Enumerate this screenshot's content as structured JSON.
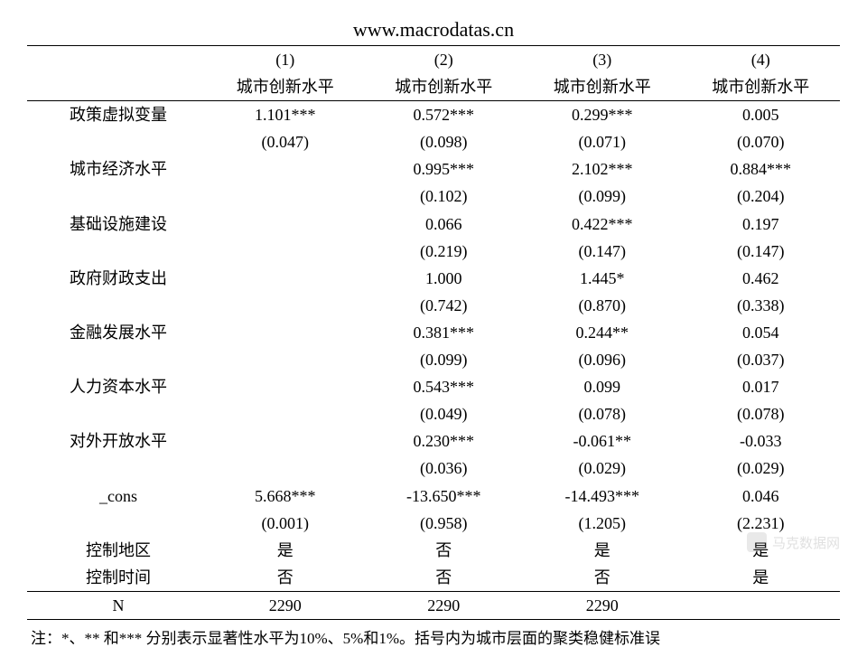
{
  "header": {
    "url": "www.macrodatas.cn"
  },
  "table": {
    "type": "table",
    "background_color": "#ffffff",
    "text_color": "#000000",
    "border_color": "#000000",
    "font_family": "Times New Roman / SimSun",
    "title_fontsize": 22,
    "body_fontsize": 18,
    "col_label_width_pct": 22,
    "col_data_width_pct": 19.5,
    "columns": {
      "indices": [
        "(1)",
        "(2)",
        "(3)",
        "(4)"
      ],
      "labels": [
        "城市创新水平",
        "城市创新水平",
        "城市创新水平",
        "城市创新水平"
      ]
    },
    "rows": [
      {
        "label": "政策虚拟变量",
        "coef": [
          "1.101***",
          "0.572***",
          "0.299***",
          "0.005"
        ],
        "se": [
          "(0.047)",
          "(0.098)",
          "(0.071)",
          "(0.070)"
        ]
      },
      {
        "label": "城市经济水平",
        "coef": [
          "",
          "0.995***",
          "2.102***",
          "0.884***"
        ],
        "se": [
          "",
          "(0.102)",
          "(0.099)",
          "(0.204)"
        ]
      },
      {
        "label": "基础设施建设",
        "coef": [
          "",
          "0.066",
          "0.422***",
          "0.197"
        ],
        "se": [
          "",
          "(0.219)",
          "(0.147)",
          "(0.147)"
        ]
      },
      {
        "label": "政府财政支出",
        "coef": [
          "",
          "1.000",
          "1.445*",
          "0.462"
        ],
        "se": [
          "",
          "(0.742)",
          "(0.870)",
          "(0.338)"
        ]
      },
      {
        "label": "金融发展水平",
        "coef": [
          "",
          "0.381***",
          "0.244**",
          "0.054"
        ],
        "se": [
          "",
          "(0.099)",
          "(0.096)",
          "(0.037)"
        ]
      },
      {
        "label": "人力资本水平",
        "coef": [
          "",
          "0.543***",
          "0.099",
          "0.017"
        ],
        "se": [
          "",
          "(0.049)",
          "(0.078)",
          "(0.078)"
        ]
      },
      {
        "label": "对外开放水平",
        "coef": [
          "",
          "0.230***",
          "-0.061**",
          "-0.033"
        ],
        "se": [
          "",
          "(0.036)",
          "(0.029)",
          "(0.029)"
        ]
      },
      {
        "label": "_cons",
        "coef": [
          "5.668***",
          "-13.650***",
          "-14.493***",
          "0.046"
        ],
        "se": [
          "(0.001)",
          "(0.958)",
          "(1.205)",
          "(2.231)"
        ]
      }
    ],
    "extra_rows": [
      {
        "label": "控制地区",
        "vals": [
          "是",
          "否",
          "是",
          "是"
        ]
      },
      {
        "label": "控制时间",
        "vals": [
          "否",
          "否",
          "否",
          "是"
        ]
      },
      {
        "label": "N",
        "vals": [
          "2290",
          "2290",
          "2290",
          ""
        ]
      }
    ]
  },
  "footnote": "注：*、** 和*** 分别表示显著性水平为10%、5%和1%。括号内为城市层面的聚类稳健标准误",
  "watermark": {
    "text": "马克数据网"
  }
}
